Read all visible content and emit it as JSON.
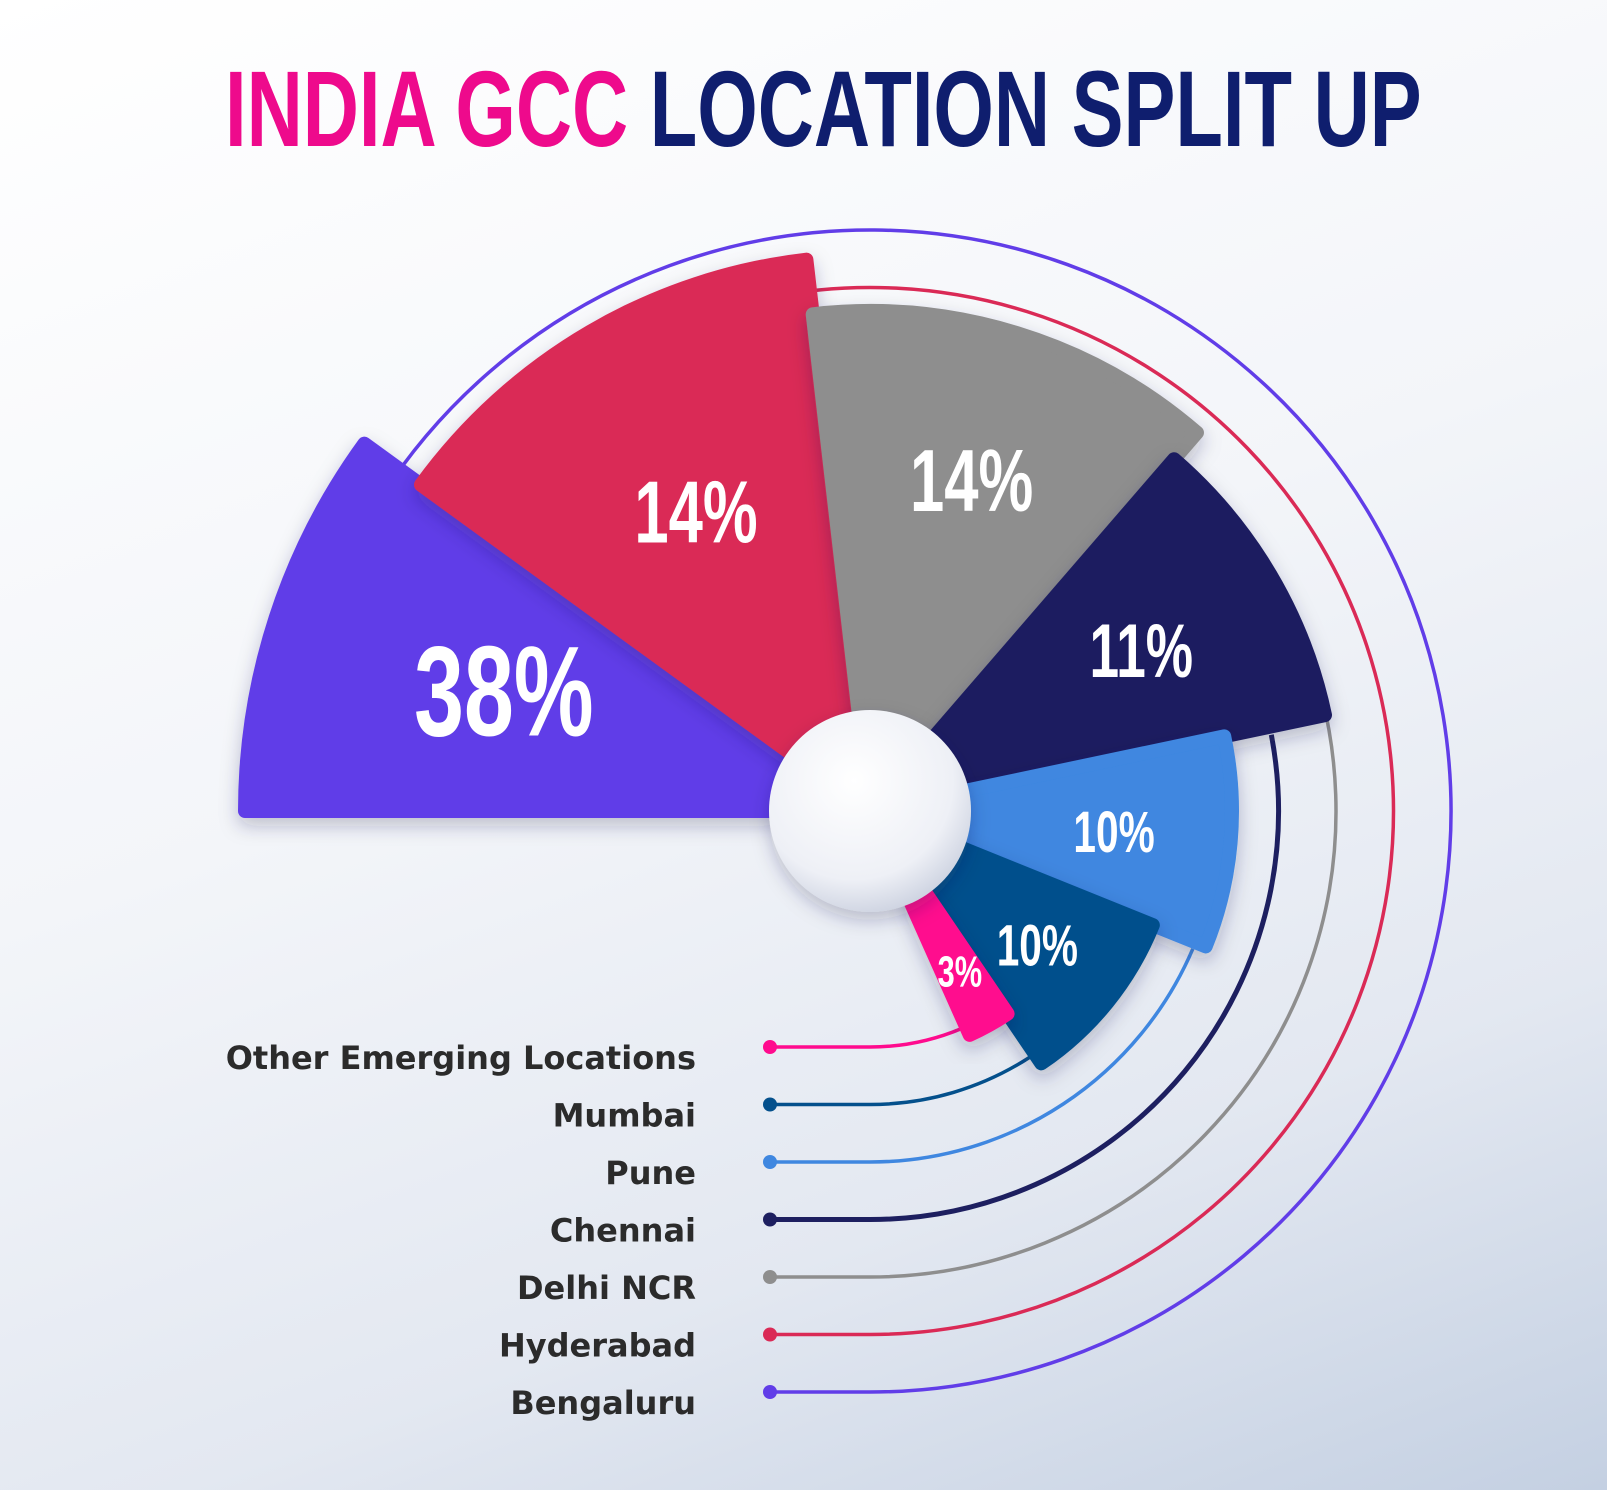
{
  "title": {
    "part1": "INDIA GCC",
    "part2": "LOCATION SPLIT UP"
  },
  "colors": {
    "title_accent": "#ee0a8c",
    "title_main": "#0f1e6e"
  },
  "chart_data": {
    "type": "pie",
    "title": "INDIA GCC LOCATION SPLIT UP",
    "slices": [
      {
        "name": "Bengaluru",
        "value": 38,
        "label": "38%",
        "color": "#613de8"
      },
      {
        "name": "Hyderabad",
        "value": 14,
        "label": "14%",
        "color": "#da2a56"
      },
      {
        "name": "Delhi NCR",
        "value": 14,
        "label": "14%",
        "color": "#8e8e8e"
      },
      {
        "name": "Chennai",
        "value": 11,
        "label": "11%",
        "color": "#1d1f60"
      },
      {
        "name": "Pune",
        "value": 10,
        "label": "10%",
        "color": "#3f87e0"
      },
      {
        "name": "Mumbai",
        "value": 10,
        "label": "10%",
        "color": "#04508c"
      },
      {
        "name": "Other Emerging Locations",
        "value": 3,
        "label": "3%",
        "color": "#ff0b8e"
      }
    ],
    "legend_order": [
      "Other Emerging Locations",
      "Mumbai",
      "Pune",
      "Chennai",
      "Delhi NCR",
      "Hyderabad",
      "Bengaluru"
    ],
    "legend_placement": "bottom-left"
  }
}
